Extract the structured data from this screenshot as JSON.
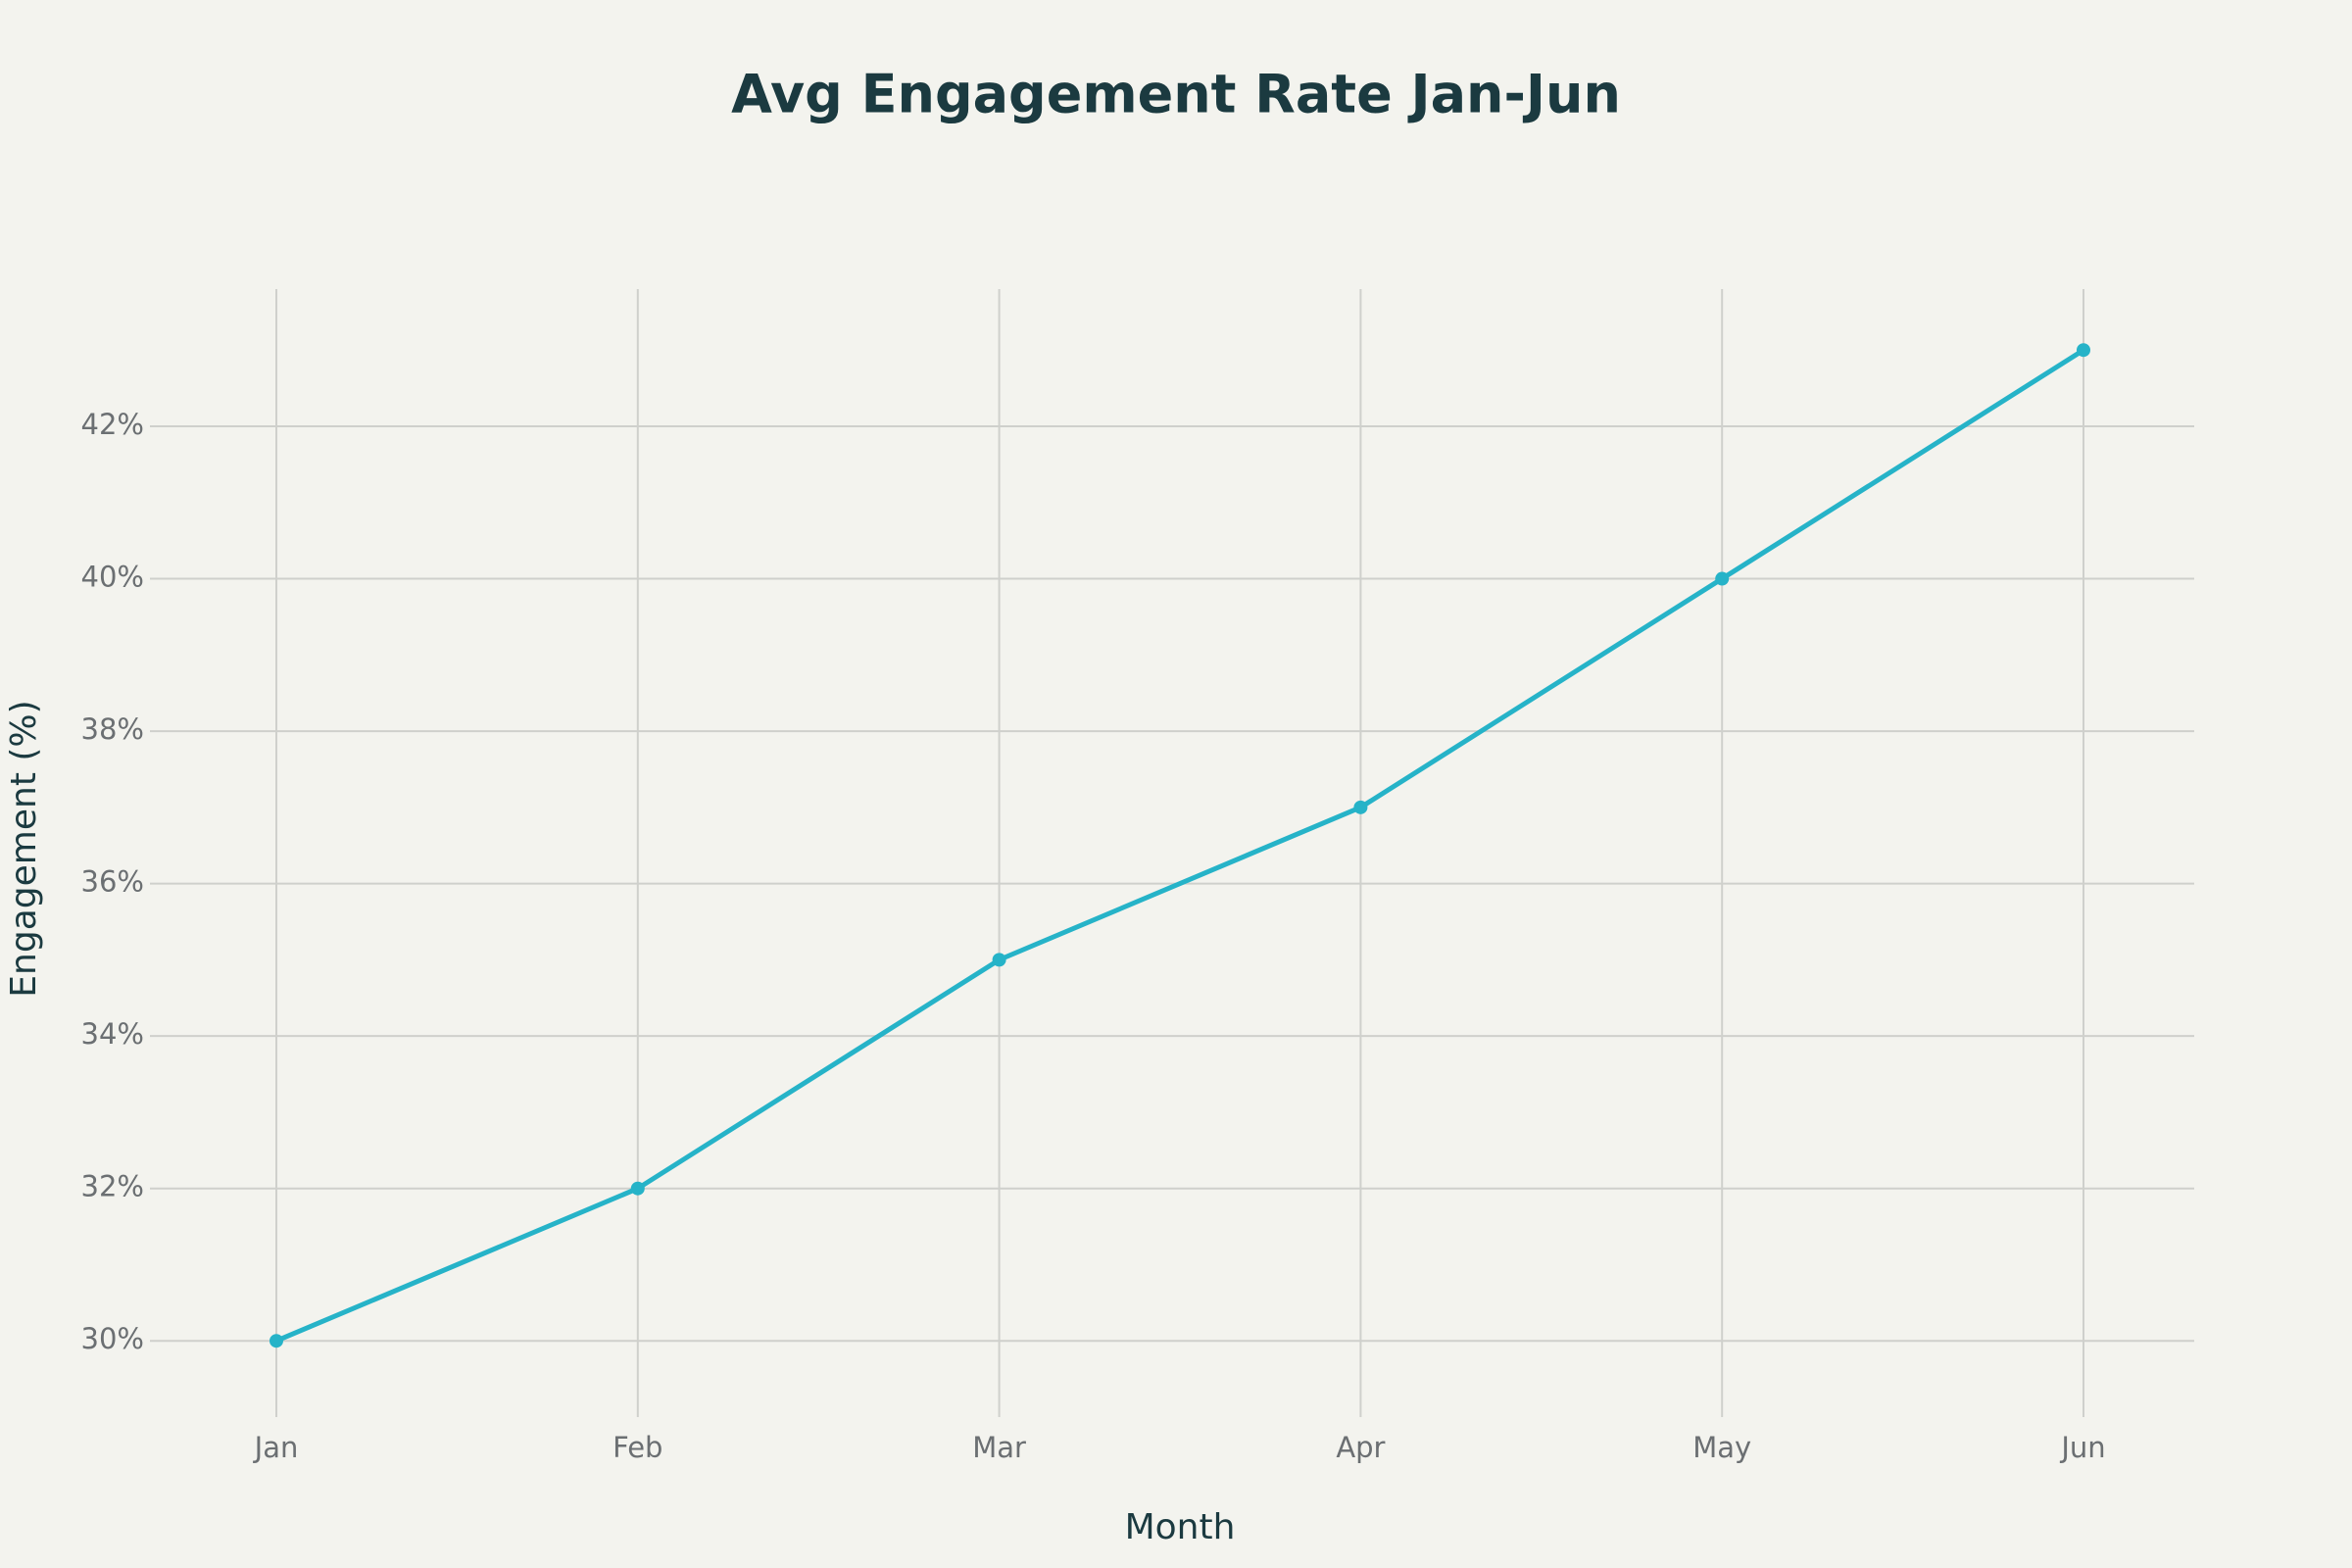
{
  "chart_data": {
    "type": "line",
    "title": "Avg Engagement Rate Jan-Jun",
    "x_label": "Month",
    "y_label": "Engagement (%)",
    "categories": [
      "Jan",
      "Feb",
      "Mar",
      "Apr",
      "May",
      "Jun"
    ],
    "values": [
      30,
      32,
      35,
      37,
      40,
      43
    ],
    "color": "#26b3c8",
    "ylim": [
      29,
      43.8
    ],
    "yticks": [
      {
        "value": 30,
        "label": "30%"
      },
      {
        "value": 32,
        "label": "32%"
      },
      {
        "value": 34,
        "label": "34%"
      },
      {
        "value": 36,
        "label": "36%"
      },
      {
        "value": 38,
        "label": "38%"
      },
      {
        "value": 40,
        "label": "40%"
      },
      {
        "value": 42,
        "label": "42%"
      }
    ],
    "grid": true
  }
}
